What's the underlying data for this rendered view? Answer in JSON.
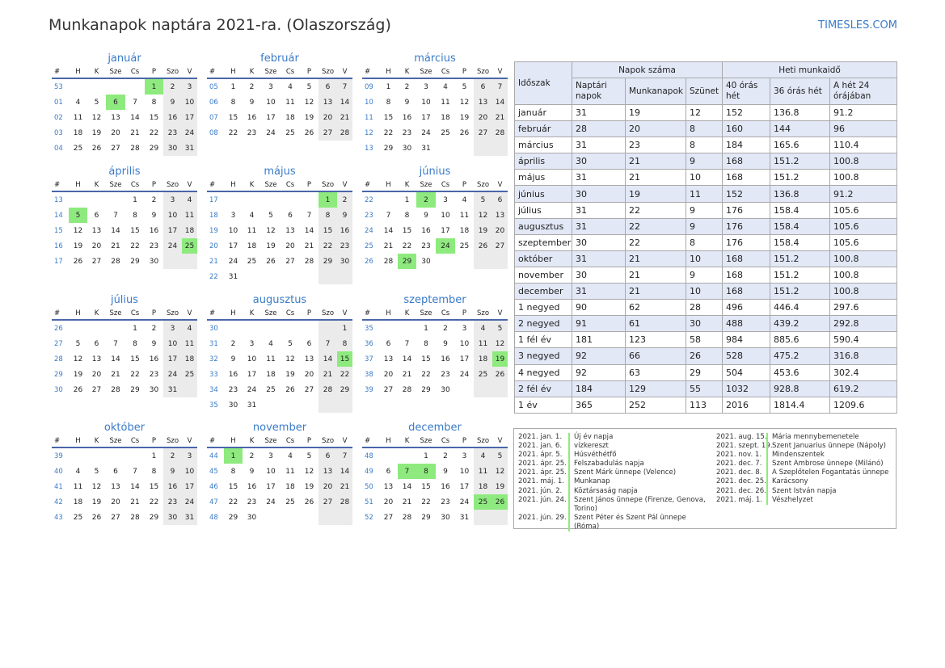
{
  "title": "Munkanapok naptára 2021-ra. (Olaszország)",
  "brand": "TIMESLES.COM",
  "colors": {
    "accent": "#3a7bc8",
    "holiday": "#8eea7e",
    "weekend": "#ebebeb",
    "header_bg": "#e3e8f7"
  },
  "week_header": [
    "#",
    "H",
    "K",
    "Sze",
    "Cs",
    "P",
    "Szo",
    "V"
  ],
  "months": [
    {
      "name": "január",
      "rows": [
        [
          "53",
          "",
          "",
          "",
          "",
          "1",
          "2",
          "3"
        ],
        [
          "01",
          "4",
          "5",
          "6",
          "7",
          "8",
          "9",
          "10"
        ],
        [
          "02",
          "11",
          "12",
          "13",
          "14",
          "15",
          "16",
          "17"
        ],
        [
          "03",
          "18",
          "19",
          "20",
          "21",
          "22",
          "23",
          "24"
        ],
        [
          "04",
          "25",
          "26",
          "27",
          "28",
          "29",
          "30",
          "31"
        ]
      ],
      "holidays": [
        "1",
        "6"
      ]
    },
    {
      "name": "február",
      "rows": [
        [
          "05",
          "1",
          "2",
          "3",
          "4",
          "5",
          "6",
          "7"
        ],
        [
          "06",
          "8",
          "9",
          "10",
          "11",
          "12",
          "13",
          "14"
        ],
        [
          "07",
          "15",
          "16",
          "17",
          "18",
          "19",
          "20",
          "21"
        ],
        [
          "08",
          "22",
          "23",
          "24",
          "25",
          "26",
          "27",
          "28"
        ]
      ],
      "holidays": []
    },
    {
      "name": "március",
      "rows": [
        [
          "09",
          "1",
          "2",
          "3",
          "4",
          "5",
          "6",
          "7"
        ],
        [
          "10",
          "8",
          "9",
          "10",
          "11",
          "12",
          "13",
          "14"
        ],
        [
          "11",
          "15",
          "16",
          "17",
          "18",
          "19",
          "20",
          "21"
        ],
        [
          "12",
          "22",
          "23",
          "24",
          "25",
          "26",
          "27",
          "28"
        ],
        [
          "13",
          "29",
          "30",
          "31",
          "",
          "",
          "",
          ""
        ]
      ],
      "holidays": []
    },
    {
      "name": "április",
      "rows": [
        [
          "13",
          "",
          "",
          "",
          "1",
          "2",
          "3",
          "4"
        ],
        [
          "14",
          "5",
          "6",
          "7",
          "8",
          "9",
          "10",
          "11"
        ],
        [
          "15",
          "12",
          "13",
          "14",
          "15",
          "16",
          "17",
          "18"
        ],
        [
          "16",
          "19",
          "20",
          "21",
          "22",
          "23",
          "24",
          "25"
        ],
        [
          "17",
          "26",
          "27",
          "28",
          "29",
          "30",
          "",
          ""
        ]
      ],
      "holidays": [
        "5",
        "25"
      ]
    },
    {
      "name": "május",
      "rows": [
        [
          "17",
          "",
          "",
          "",
          "",
          "",
          "1",
          "2"
        ],
        [
          "18",
          "3",
          "4",
          "5",
          "6",
          "7",
          "8",
          "9"
        ],
        [
          "19",
          "10",
          "11",
          "12",
          "13",
          "14",
          "15",
          "16"
        ],
        [
          "20",
          "17",
          "18",
          "19",
          "20",
          "21",
          "22",
          "23"
        ],
        [
          "21",
          "24",
          "25",
          "26",
          "27",
          "28",
          "29",
          "30"
        ],
        [
          "22",
          "31",
          "",
          "",
          "",
          "",
          "",
          ""
        ]
      ],
      "holidays": [
        "1"
      ]
    },
    {
      "name": "június",
      "rows": [
        [
          "22",
          "",
          "1",
          "2",
          "3",
          "4",
          "5",
          "6"
        ],
        [
          "23",
          "7",
          "8",
          "9",
          "10",
          "11",
          "12",
          "13"
        ],
        [
          "24",
          "14",
          "15",
          "16",
          "17",
          "18",
          "19",
          "20"
        ],
        [
          "25",
          "21",
          "22",
          "23",
          "24",
          "25",
          "26",
          "27"
        ],
        [
          "26",
          "28",
          "29",
          "30",
          "",
          "",
          "",
          ""
        ]
      ],
      "holidays": [
        "2",
        "24",
        "29"
      ]
    },
    {
      "name": "július",
      "rows": [
        [
          "26",
          "",
          "",
          "",
          "1",
          "2",
          "3",
          "4"
        ],
        [
          "27",
          "5",
          "6",
          "7",
          "8",
          "9",
          "10",
          "11"
        ],
        [
          "28",
          "12",
          "13",
          "14",
          "15",
          "16",
          "17",
          "18"
        ],
        [
          "29",
          "19",
          "20",
          "21",
          "22",
          "23",
          "24",
          "25"
        ],
        [
          "30",
          "26",
          "27",
          "28",
          "29",
          "30",
          "31",
          ""
        ]
      ],
      "holidays": []
    },
    {
      "name": "augusztus",
      "rows": [
        [
          "30",
          "",
          "",
          "",
          "",
          "",
          "",
          "1"
        ],
        [
          "31",
          "2",
          "3",
          "4",
          "5",
          "6",
          "7",
          "8"
        ],
        [
          "32",
          "9",
          "10",
          "11",
          "12",
          "13",
          "14",
          "15"
        ],
        [
          "33",
          "16",
          "17",
          "18",
          "19",
          "20",
          "21",
          "22"
        ],
        [
          "34",
          "23",
          "24",
          "25",
          "26",
          "27",
          "28",
          "29"
        ],
        [
          "35",
          "30",
          "31",
          "",
          "",
          "",
          "",
          ""
        ]
      ],
      "holidays": [
        "15"
      ]
    },
    {
      "name": "szeptember",
      "rows": [
        [
          "35",
          "",
          "",
          "1",
          "2",
          "3",
          "4",
          "5"
        ],
        [
          "36",
          "6",
          "7",
          "8",
          "9",
          "10",
          "11",
          "12"
        ],
        [
          "37",
          "13",
          "14",
          "15",
          "16",
          "17",
          "18",
          "19"
        ],
        [
          "38",
          "20",
          "21",
          "22",
          "23",
          "24",
          "25",
          "26"
        ],
        [
          "39",
          "27",
          "28",
          "29",
          "30",
          "",
          "",
          ""
        ]
      ],
      "holidays": [
        "19"
      ]
    },
    {
      "name": "október",
      "rows": [
        [
          "39",
          "",
          "",
          "",
          "",
          "1",
          "2",
          "3"
        ],
        [
          "40",
          "4",
          "5",
          "6",
          "7",
          "8",
          "9",
          "10"
        ],
        [
          "41",
          "11",
          "12",
          "13",
          "14",
          "15",
          "16",
          "17"
        ],
        [
          "42",
          "18",
          "19",
          "20",
          "21",
          "22",
          "23",
          "24"
        ],
        [
          "43",
          "25",
          "26",
          "27",
          "28",
          "29",
          "30",
          "31"
        ]
      ],
      "holidays": []
    },
    {
      "name": "november",
      "rows": [
        [
          "44",
          "1",
          "2",
          "3",
          "4",
          "5",
          "6",
          "7"
        ],
        [
          "45",
          "8",
          "9",
          "10",
          "11",
          "12",
          "13",
          "14"
        ],
        [
          "46",
          "15",
          "16",
          "17",
          "18",
          "19",
          "20",
          "21"
        ],
        [
          "47",
          "22",
          "23",
          "24",
          "25",
          "26",
          "27",
          "28"
        ],
        [
          "48",
          "29",
          "30",
          "",
          "",
          "",
          "",
          ""
        ]
      ],
      "holidays": [
        "1"
      ]
    },
    {
      "name": "december",
      "rows": [
        [
          "48",
          "",
          "",
          "1",
          "2",
          "3",
          "4",
          "5"
        ],
        [
          "49",
          "6",
          "7",
          "8",
          "9",
          "10",
          "11",
          "12"
        ],
        [
          "50",
          "13",
          "14",
          "15",
          "16",
          "17",
          "18",
          "19"
        ],
        [
          "51",
          "20",
          "21",
          "22",
          "23",
          "24",
          "25",
          "26"
        ],
        [
          "52",
          "27",
          "28",
          "29",
          "30",
          "31",
          "",
          ""
        ]
      ],
      "holidays": [
        "7",
        "8",
        "25",
        "26"
      ]
    }
  ],
  "stats": {
    "period_header": "Időszak",
    "days_group": "Napok száma",
    "hours_group": "Heti munkaidő",
    "col_calendar": "Naptári napok",
    "col_workdays": "Munkanapok",
    "col_holidays": "Szünet",
    "col_40": "40 órás hét",
    "col_36": "36 órás hét",
    "col_24": "A hét 24 órájában",
    "rows": [
      [
        "január",
        "31",
        "19",
        "12",
        "152",
        "136.8",
        "91.2"
      ],
      [
        "február",
        "28",
        "20",
        "8",
        "160",
        "144",
        "96"
      ],
      [
        "március",
        "31",
        "23",
        "8",
        "184",
        "165.6",
        "110.4"
      ],
      [
        "április",
        "30",
        "21",
        "9",
        "168",
        "151.2",
        "100.8"
      ],
      [
        "május",
        "31",
        "21",
        "10",
        "168",
        "151.2",
        "100.8"
      ],
      [
        "június",
        "30",
        "19",
        "11",
        "152",
        "136.8",
        "91.2"
      ],
      [
        "július",
        "31",
        "22",
        "9",
        "176",
        "158.4",
        "105.6"
      ],
      [
        "augusztus",
        "31",
        "22",
        "9",
        "176",
        "158.4",
        "105.6"
      ],
      [
        "szeptember",
        "30",
        "22",
        "8",
        "176",
        "158.4",
        "105.6"
      ],
      [
        "október",
        "31",
        "21",
        "10",
        "168",
        "151.2",
        "100.8"
      ],
      [
        "november",
        "30",
        "21",
        "9",
        "168",
        "151.2",
        "100.8"
      ],
      [
        "december",
        "31",
        "21",
        "10",
        "168",
        "151.2",
        "100.8"
      ],
      [
        "1 negyed",
        "90",
        "62",
        "28",
        "496",
        "446.4",
        "297.6"
      ],
      [
        "2 negyed",
        "91",
        "61",
        "30",
        "488",
        "439.2",
        "292.8"
      ],
      [
        "1 fél év",
        "181",
        "123",
        "58",
        "984",
        "885.6",
        "590.4"
      ],
      [
        "3 negyed",
        "92",
        "66",
        "26",
        "528",
        "475.2",
        "316.8"
      ],
      [
        "4 negyed",
        "92",
        "63",
        "29",
        "504",
        "453.6",
        "302.4"
      ],
      [
        "2 fél év",
        "184",
        "129",
        "55",
        "1032",
        "928.8",
        "619.2"
      ],
      [
        "1 év",
        "365",
        "252",
        "113",
        "2016",
        "1814.4",
        "1209.6"
      ]
    ]
  },
  "holidays_left": [
    {
      "date": "2021. jan. 1.",
      "name": "Új év napja"
    },
    {
      "date": "2021. jan. 6.",
      "name": "vízkereszt"
    },
    {
      "date": "2021. ápr. 5.",
      "name": "Húsvéthétfő"
    },
    {
      "date": "2021. ápr. 25.",
      "name": "Felszabadulás napja"
    },
    {
      "date": "2021. ápr. 25.",
      "name": "Szent Márk ünnepe (Velence)"
    },
    {
      "date": "2021. máj. 1.",
      "name": "Munkanap"
    },
    {
      "date": "2021. jún. 2.",
      "name": "Köztársaság napja"
    },
    {
      "date": "2021. jún. 24.",
      "name": "Szent János ünnepe (Firenze, Genova, Torino)"
    },
    {
      "date": "2021. jún. 29.",
      "name": "Szent Péter és Szent Pál ünnepe (Róma)"
    }
  ],
  "holidays_right": [
    {
      "date": "2021. aug. 15.",
      "name": "Mária mennybemenetele"
    },
    {
      "date": "2021. szept. 19.",
      "name": "Szent Januarius ünnepe (Nápoly)"
    },
    {
      "date": "2021. nov. 1.",
      "name": "Mindenszentek"
    },
    {
      "date": "2021. dec. 7.",
      "name": "Szent Ambrose ünnepe (Milánó)"
    },
    {
      "date": "2021. dec. 8.",
      "name": "A Szeplőtelen Fogantatás ünnepe"
    },
    {
      "date": "2021. dec. 25.",
      "name": "Karácsony"
    },
    {
      "date": "2021. dec. 26.",
      "name": "Szent István napja"
    },
    {
      "date": "2021. máj. 1.",
      "name": "Vészhelyzet"
    }
  ]
}
